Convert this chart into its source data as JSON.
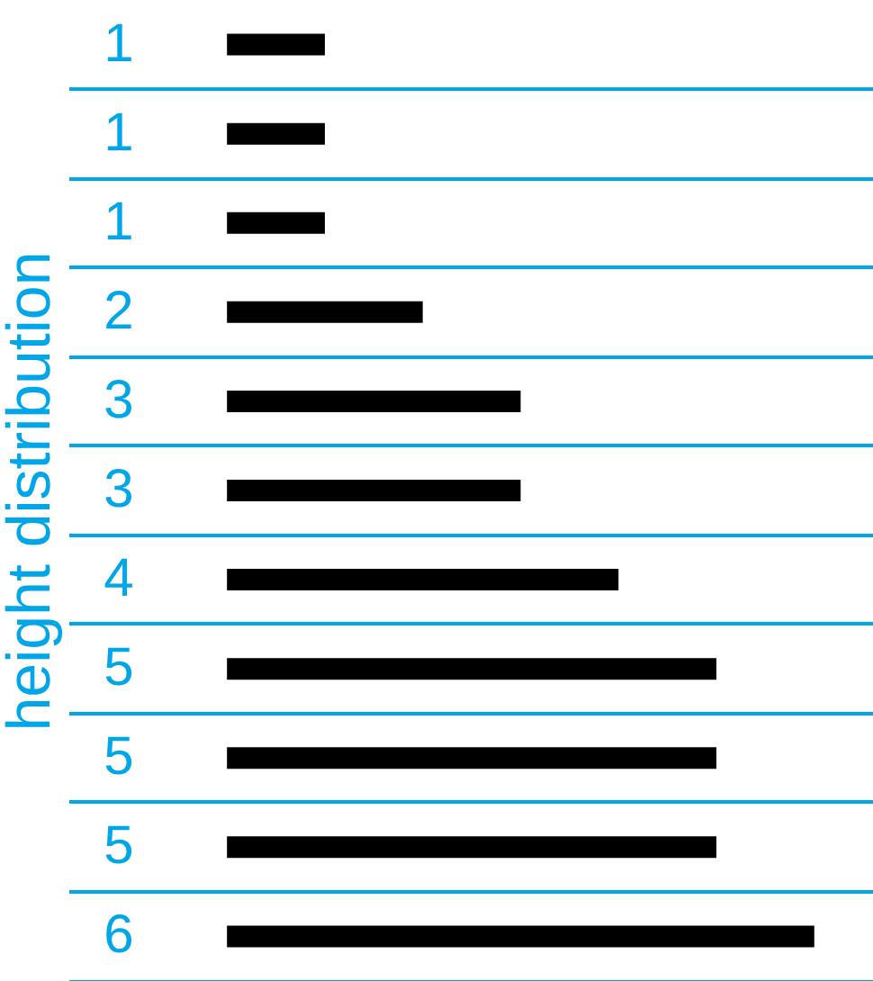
{
  "chart_data": {
    "type": "bar",
    "orientation": "horizontal",
    "ylabel": "height distribution",
    "categories": [
      null,
      null,
      null,
      null,
      null,
      null,
      null,
      null,
      null,
      null,
      null
    ],
    "values": [
      1,
      1,
      1,
      2,
      3,
      3,
      4,
      5,
      5,
      5,
      6
    ],
    "color": "#000000",
    "data_labels": true,
    "grid": true,
    "tick_labels": false
  }
}
